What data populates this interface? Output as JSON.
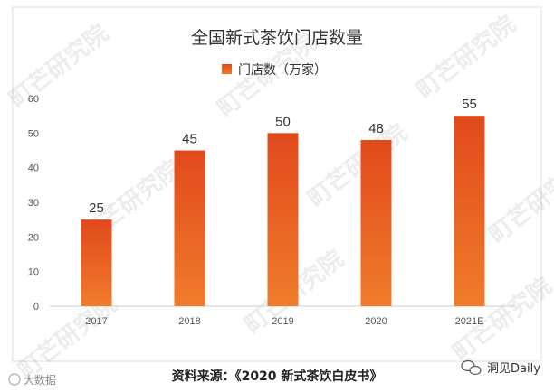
{
  "chart_data": {
    "type": "bar",
    "title": "全国新式茶饮门店数量",
    "legend": "门店数（万家）",
    "legend_position": "top-center",
    "categories": [
      "2017",
      "2018",
      "2019",
      "2020",
      "2021E"
    ],
    "series": [
      {
        "name": "门店数（万家）",
        "values": [
          25,
          45,
          50,
          48,
          55
        ]
      }
    ],
    "ylim": [
      0,
      60
    ],
    "yticks": [
      0,
      10,
      20,
      30,
      40,
      50,
      60
    ],
    "grid": false,
    "bar_color_top": "#e2491c",
    "bar_color_bottom": "#f07c2b"
  },
  "watermark": "町芒研究院",
  "source": "资料来源：《2020 新式茶饮白皮书》",
  "footer": {
    "left_watermark": "大数据",
    "right_brand": "洞见Daily",
    "right_icon": "wechat-icon"
  }
}
